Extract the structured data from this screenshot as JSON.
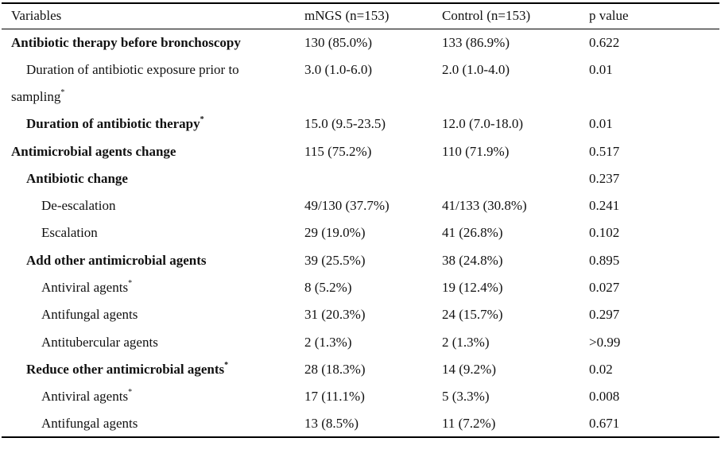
{
  "header": {
    "variables": "Variables",
    "mngs": "mNGS (n=153)",
    "control": "Control (n=153)",
    "p": "p value"
  },
  "rows": [
    {
      "label": "Antibiotic therapy before bronchoscopy",
      "sup": "",
      "mngs": "130 (85.0%)",
      "control": "133 (86.9%)",
      "p": "0.622"
    },
    {
      "label": "Duration of antibiotic exposure prior to",
      "sup": "",
      "mngs": "3.0 (1.0-6.0)",
      "control": "2.0 (1.0-4.0)",
      "p": "0.01"
    },
    {
      "label": "sampling",
      "sup": "*",
      "mngs": "",
      "control": "",
      "p": ""
    },
    {
      "label": "Duration of antibiotic therapy",
      "sup": "*",
      "mngs": "15.0 (9.5-23.5)",
      "control": "12.0 (7.0-18.0)",
      "p": "0.01"
    },
    {
      "label": "Antimicrobial agents change",
      "sup": "",
      "mngs": "115 (75.2%)",
      "control": "110 (71.9%)",
      "p": "0.517"
    },
    {
      "label": "Antibiotic change",
      "sup": "",
      "mngs": "",
      "control": "",
      "p": "0.237"
    },
    {
      "label": "De-escalation",
      "sup": "",
      "mngs": "49/130 (37.7%)",
      "control": "41/133 (30.8%)",
      "p": "0.241"
    },
    {
      "label": "Escalation",
      "sup": "",
      "mngs": "29 (19.0%)",
      "control": "41 (26.8%)",
      "p": "0.102"
    },
    {
      "label": "Add other antimicrobial agents",
      "sup": "",
      "mngs": "39 (25.5%)",
      "control": "38 (24.8%)",
      "p": "0.895"
    },
    {
      "label": "Antiviral agents",
      "sup": "*",
      "mngs": "8 (5.2%)",
      "control": "19 (12.4%)",
      "p": "0.027"
    },
    {
      "label": "Antifungal agents",
      "sup": "",
      "mngs": "31 (20.3%)",
      "control": "24 (15.7%)",
      "p": "0.297"
    },
    {
      "label": "Antitubercular agents",
      "sup": "",
      "mngs": "2 (1.3%)",
      "control": "2 (1.3%)",
      "p": ">0.99"
    },
    {
      "label": "Reduce other antimicrobial agents",
      "sup": "*",
      "mngs": "28 (18.3%)",
      "control": "14 (9.2%)",
      "p": "0.02"
    },
    {
      "label": "Antiviral agents",
      "sup": "*",
      "mngs": "17 (11.1%)",
      "control": "5 (3.3%)",
      "p": "0.008"
    },
    {
      "label": "Antifungal agents",
      "sup": "",
      "mngs": "13 (8.5%)",
      "control": "11 (7.2%)",
      "p": "0.671"
    }
  ]
}
